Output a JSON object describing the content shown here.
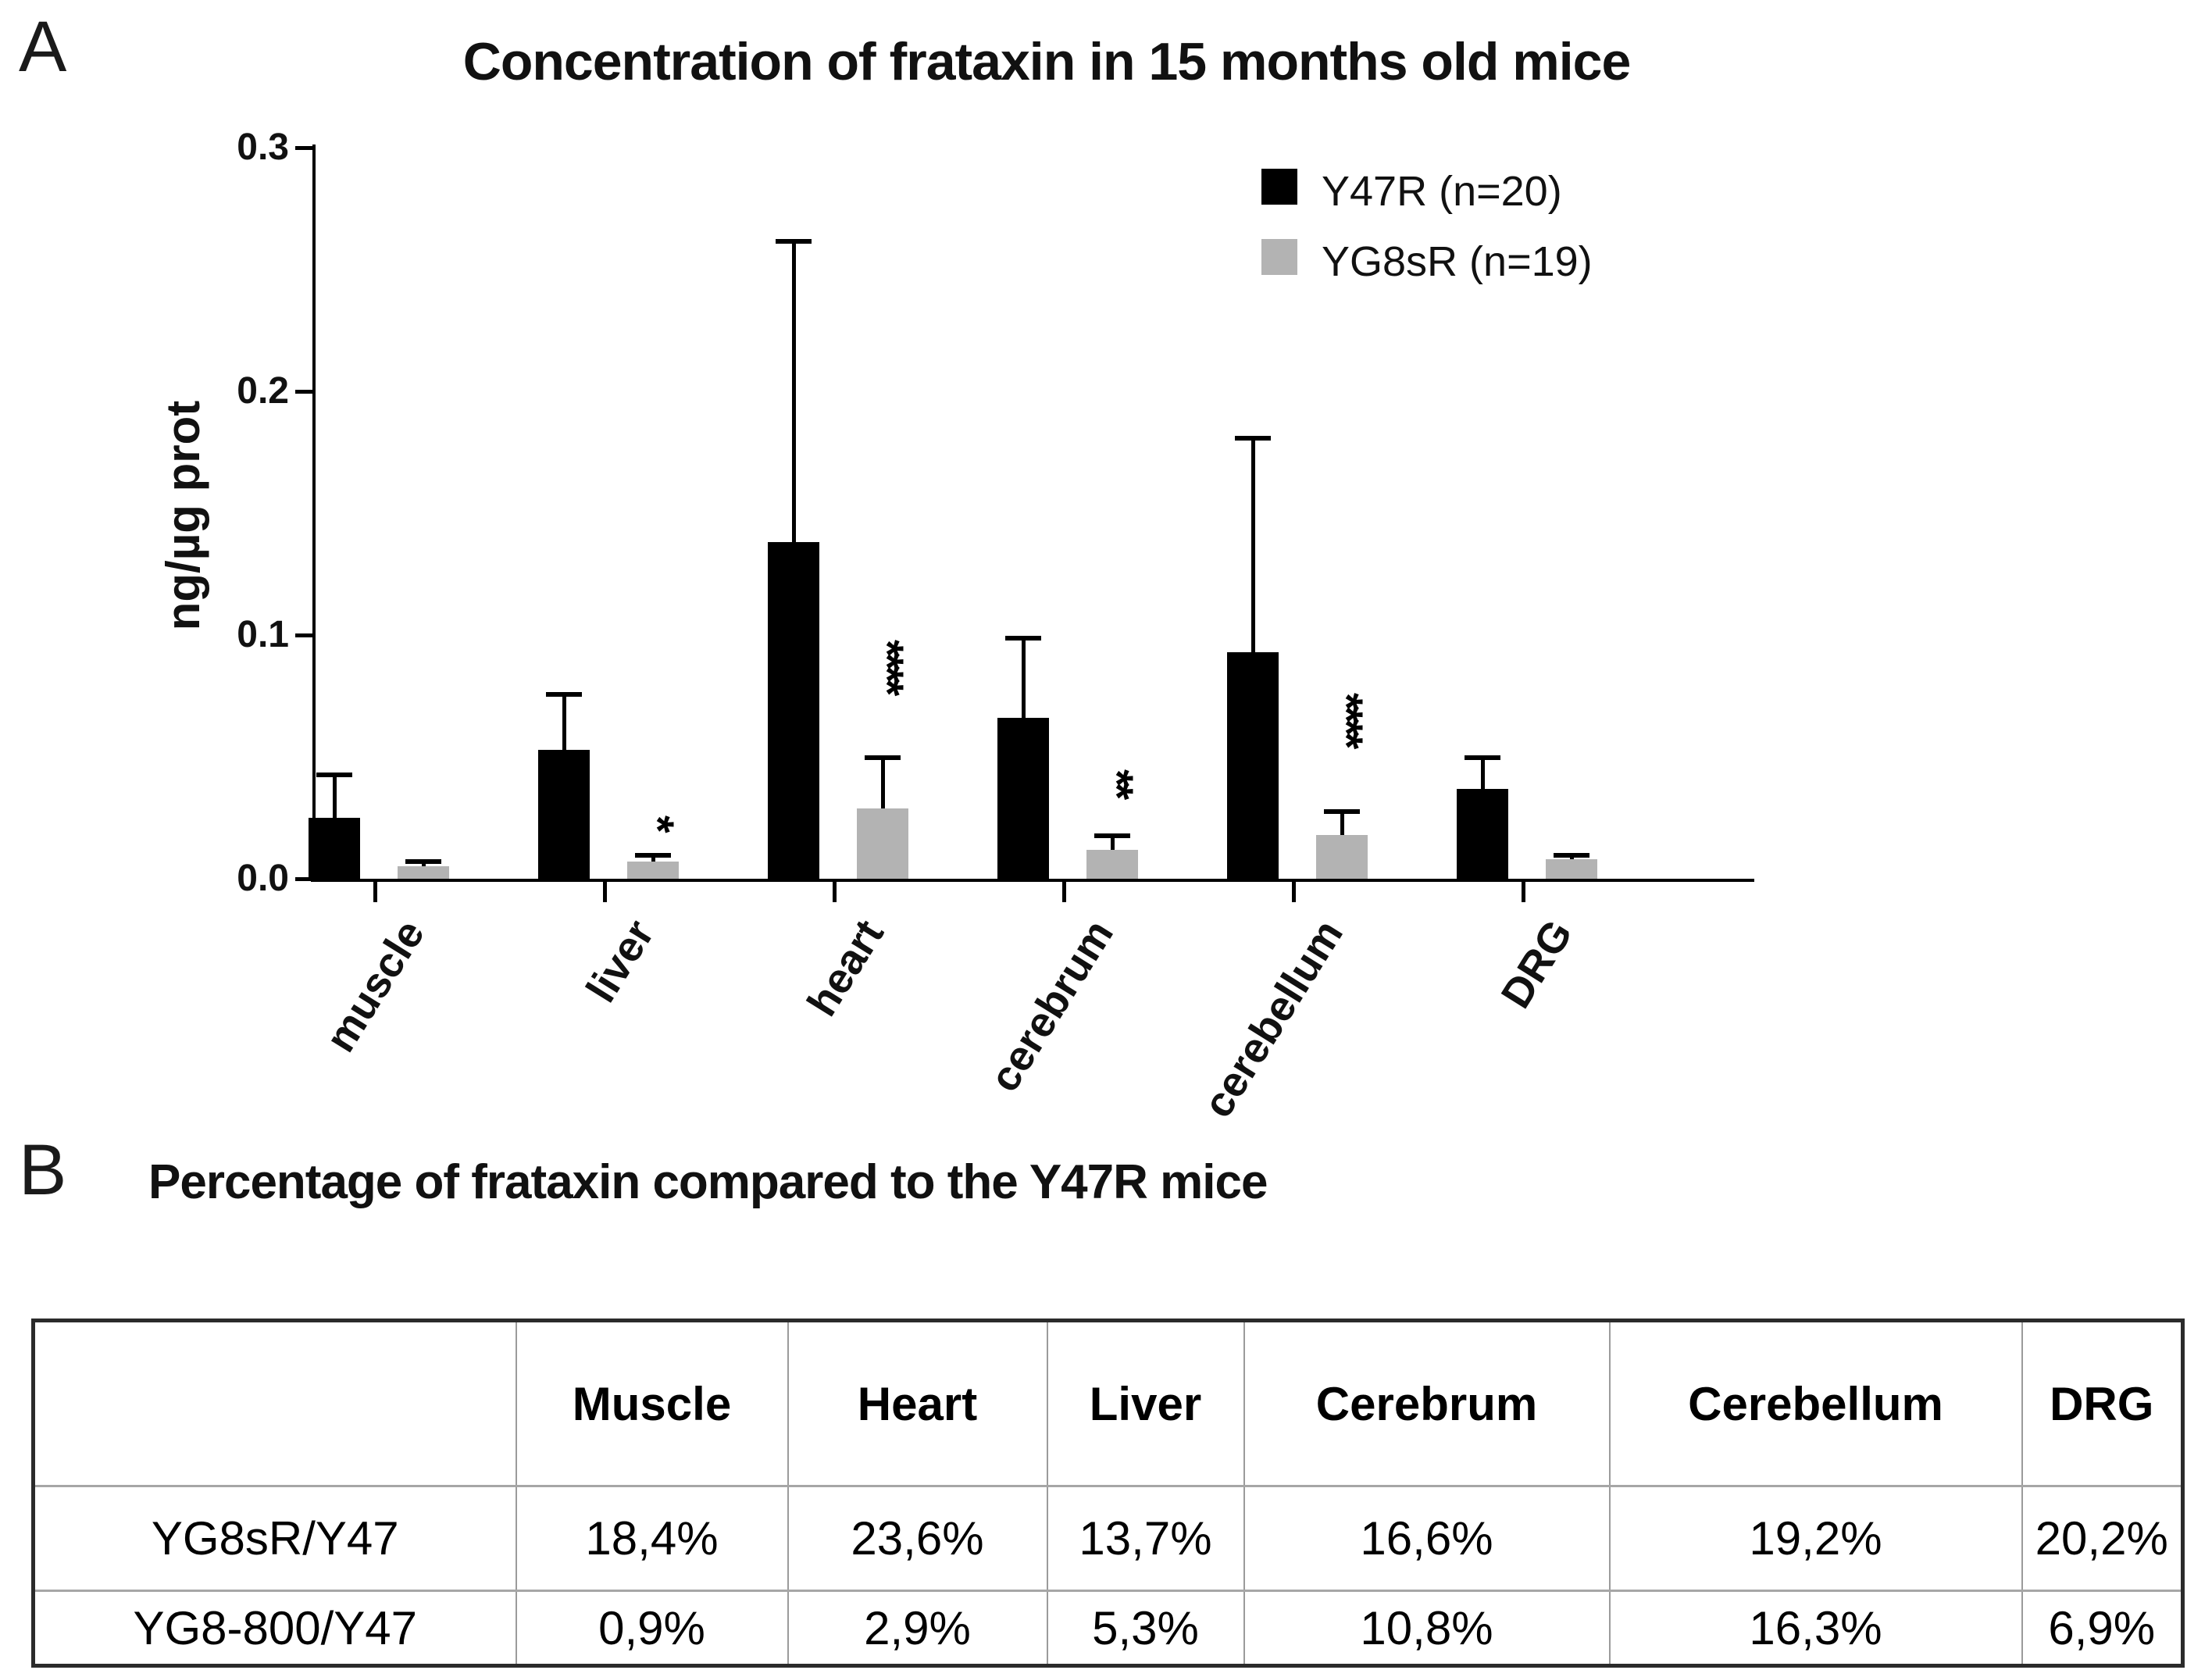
{
  "panelA": {
    "label": "A",
    "chart_title": "Concentration of frataxin in 15 months old mice"
  },
  "panelB": {
    "label": "B",
    "title": "Percentage of frataxin compared to the Y47R mice",
    "table": {
      "headers": [
        "",
        "Muscle",
        "Heart",
        "Liver",
        "Cerebrum",
        "Cerebellum",
        "DRG"
      ],
      "rows": [
        {
          "label": "YG8sR/Y47",
          "values": [
            "18,4%",
            "23,6%",
            "13,7%",
            "16,6%",
            "19,2%",
            "20,2%"
          ]
        },
        {
          "label": "YG8-800/Y47",
          "values": [
            "0,9%",
            "2,9%",
            "5,3%",
            "10,8%",
            "16,3%",
            "6,9%"
          ]
        }
      ]
    }
  },
  "chart_data": {
    "type": "bar",
    "title": "Concentration of frataxin in 15 months old mice",
    "xlabel": "",
    "ylabel": "ng/µg prot",
    "ylim": [
      0,
      0.3
    ],
    "yticks": [
      0,
      0.1,
      0.2,
      0.3
    ],
    "grid": false,
    "legend_position": "top-right",
    "categories": [
      "muscle",
      "liver",
      "heart",
      "cerebrum",
      "cerebellum",
      "DRG"
    ],
    "series": [
      {
        "name": "Y47R (n=20)",
        "color": "#000000",
        "values": [
          0.025,
          0.053,
          0.138,
          0.066,
          0.093,
          0.037
        ],
        "err_top": [
          0.043,
          0.076,
          0.262,
          0.099,
          0.181,
          0.05
        ]
      },
      {
        "name": "YG8sR (n=19)",
        "color": "#b3b3b3",
        "values": [
          0.005,
          0.007,
          0.029,
          0.012,
          0.018,
          0.008
        ],
        "err_top": [
          0.0075,
          0.01,
          0.05,
          0.018,
          0.028,
          0.01
        ]
      }
    ],
    "significance": [
      {
        "category": "liver",
        "stars": "*"
      },
      {
        "category": "heart",
        "stars": "****"
      },
      {
        "category": "cerebrum",
        "stars": "**"
      },
      {
        "category": "cerebellum",
        "stars": "****"
      }
    ]
  }
}
